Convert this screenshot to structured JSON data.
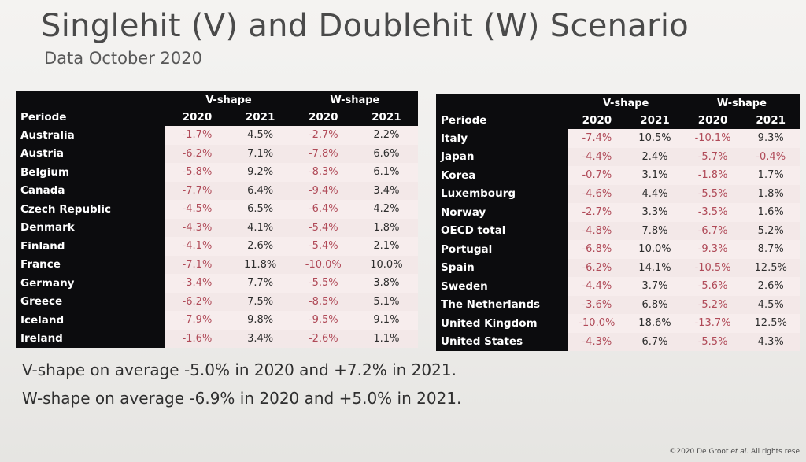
{
  "title": "Singlehit (V) and Doublehit (W) Scenario",
  "subtitle": "Data October 2020",
  "headers": {
    "periode": "Periode",
    "v_shape": "V-shape",
    "w_shape": "W-shape",
    "y2020": "2020",
    "y2021": "2021"
  },
  "table_left": [
    {
      "country": "Australia",
      "v2020": "-1.7%",
      "v2021": "4.5%",
      "w2020": "-2.7%",
      "w2021": "2.2%"
    },
    {
      "country": "Austria",
      "v2020": "-6.2%",
      "v2021": "7.1%",
      "w2020": "-7.8%",
      "w2021": "6.6%"
    },
    {
      "country": "Belgium",
      "v2020": "-5.8%",
      "v2021": "9.2%",
      "w2020": "-8.3%",
      "w2021": "6.1%"
    },
    {
      "country": "Canada",
      "v2020": "-7.7%",
      "v2021": "6.4%",
      "w2020": "-9.4%",
      "w2021": "3.4%"
    },
    {
      "country": "Czech Republic",
      "v2020": "-4.5%",
      "v2021": "6.5%",
      "w2020": "-6.4%",
      "w2021": "4.2%"
    },
    {
      "country": "Denmark",
      "v2020": "-4.3%",
      "v2021": "4.1%",
      "w2020": "-5.4%",
      "w2021": "1.8%"
    },
    {
      "country": "Finland",
      "v2020": "-4.1%",
      "v2021": "2.6%",
      "w2020": "-5.4%",
      "w2021": "2.1%"
    },
    {
      "country": "France",
      "v2020": "-7.1%",
      "v2021": "11.8%",
      "w2020": "-10.0%",
      "w2021": "10.0%"
    },
    {
      "country": "Germany",
      "v2020": "-3.4%",
      "v2021": "7.7%",
      "w2020": "-5.5%",
      "w2021": "3.8%"
    },
    {
      "country": "Greece",
      "v2020": "-6.2%",
      "v2021": "7.5%",
      "w2020": "-8.5%",
      "w2021": "5.1%"
    },
    {
      "country": "Iceland",
      "v2020": "-7.9%",
      "v2021": "9.8%",
      "w2020": "-9.5%",
      "w2021": "9.1%"
    },
    {
      "country": "Ireland",
      "v2020": "-1.6%",
      "v2021": "3.4%",
      "w2020": "-2.6%",
      "w2021": "1.1%"
    }
  ],
  "table_right": [
    {
      "country": "Italy",
      "v2020": "-7.4%",
      "v2021": "10.5%",
      "w2020": "-10.1%",
      "w2021": "9.3%"
    },
    {
      "country": "Japan",
      "v2020": "-4.4%",
      "v2021": "2.4%",
      "w2020": "-5.7%",
      "w2021": "-0.4%"
    },
    {
      "country": "Korea",
      "v2020": "-0.7%",
      "v2021": "3.1%",
      "w2020": "-1.8%",
      "w2021": "1.7%"
    },
    {
      "country": "Luxembourg",
      "v2020": "-4.6%",
      "v2021": "4.4%",
      "w2020": "-5.5%",
      "w2021": "1.8%"
    },
    {
      "country": "Norway",
      "v2020": "-2.7%",
      "v2021": "3.3%",
      "w2020": "-3.5%",
      "w2021": "1.6%"
    },
    {
      "country": "OECD total",
      "v2020": "-4.8%",
      "v2021": "7.8%",
      "w2020": "-6.7%",
      "w2021": "5.2%"
    },
    {
      "country": "Portugal",
      "v2020": "-6.8%",
      "v2021": "10.0%",
      "w2020": "-9.3%",
      "w2021": "8.7%"
    },
    {
      "country": "Spain",
      "v2020": "-6.2%",
      "v2021": "14.1%",
      "w2020": "-10.5%",
      "w2021": "12.5%"
    },
    {
      "country": "Sweden",
      "v2020": "-4.4%",
      "v2021": "3.7%",
      "w2020": "-5.6%",
      "w2021": "2.6%"
    },
    {
      "country": "The Netherlands",
      "v2020": "-3.6%",
      "v2021": "6.8%",
      "w2020": "-5.2%",
      "w2021": "4.5%"
    },
    {
      "country": "United Kingdom",
      "v2020": "-10.0%",
      "v2021": "18.6%",
      "w2020": "-13.7%",
      "w2021": "12.5%"
    },
    {
      "country": "United States",
      "v2020": "-4.3%",
      "v2021": "6.7%",
      "w2020": "-5.5%",
      "w2021": "4.3%"
    }
  ],
  "summary": {
    "line1": "V-shape on average -5.0% in 2020 and +7.2% in 2021.",
    "line2": "W-shape on average -6.9% in 2020 and +5.0% in 2021."
  },
  "copyright": {
    "prefix": "©2020 De Groot ",
    "etal": "et al.",
    "suffix": " All rights rese"
  },
  "colors": {
    "header_bg": "#0c0c0e",
    "negative_text": "#b04a58",
    "cell_bg": "#f6ecec"
  }
}
